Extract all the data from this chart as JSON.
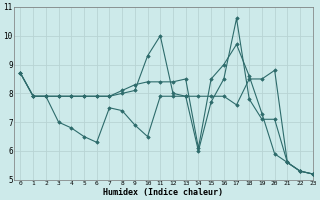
{
  "xlabel": "Humidex (Indice chaleur)",
  "bg_color": "#cdeaea",
  "grid_color": "#b8d4d4",
  "line_color": "#2d6b6b",
  "xlim": [
    -0.5,
    23
  ],
  "ylim": [
    5,
    11
  ],
  "yticks": [
    5,
    6,
    7,
    8,
    9,
    10,
    11
  ],
  "xticks": [
    0,
    1,
    2,
    3,
    4,
    5,
    6,
    7,
    8,
    9,
    10,
    11,
    12,
    13,
    14,
    15,
    16,
    17,
    18,
    19,
    20,
    21,
    22,
    23
  ],
  "line1_x": [
    0,
    1,
    2,
    3,
    4,
    5,
    6,
    7,
    8,
    9,
    10,
    11,
    12,
    13,
    14,
    15,
    16,
    17,
    18,
    19,
    20,
    21,
    22,
    23
  ],
  "line1_y": [
    8.7,
    7.9,
    7.9,
    7.9,
    7.9,
    7.9,
    7.9,
    7.9,
    8.0,
    8.1,
    9.3,
    10.0,
    8.0,
    7.9,
    6.0,
    7.7,
    8.5,
    10.6,
    7.8,
    7.1,
    7.1,
    5.6,
    5.3,
    5.2
  ],
  "line2_x": [
    0,
    1,
    2,
    3,
    4,
    5,
    6,
    7,
    8,
    9,
    10,
    11,
    12,
    13,
    14,
    15,
    16,
    17,
    18,
    19,
    20,
    21,
    22,
    23
  ],
  "line2_y": [
    8.7,
    7.9,
    7.9,
    7.0,
    6.8,
    6.5,
    6.3,
    7.5,
    7.4,
    6.9,
    6.5,
    7.9,
    7.9,
    7.9,
    7.9,
    7.9,
    7.9,
    7.6,
    8.5,
    8.5,
    8.8,
    5.6,
    5.3,
    5.2
  ],
  "line3_x": [
    0,
    1,
    2,
    3,
    4,
    5,
    6,
    7,
    8,
    9,
    10,
    11,
    12,
    13,
    14,
    15,
    16,
    17,
    18,
    19,
    20,
    21,
    22,
    23
  ],
  "line3_y": [
    8.7,
    7.9,
    7.9,
    7.9,
    7.9,
    7.9,
    7.9,
    7.9,
    8.1,
    8.3,
    8.4,
    8.4,
    8.4,
    8.5,
    6.1,
    8.5,
    9.0,
    9.7,
    8.6,
    7.3,
    5.9,
    5.6,
    5.3,
    5.2
  ]
}
